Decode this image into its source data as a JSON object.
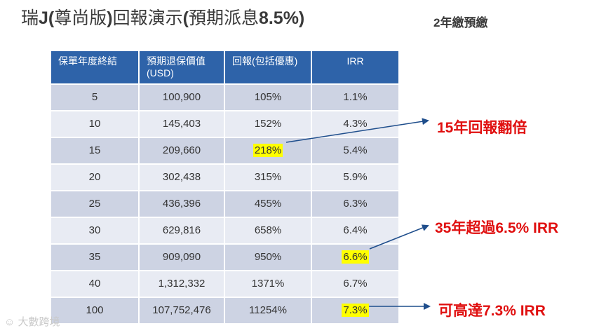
{
  "title": {
    "part1": "瑞",
    "part2": "J(",
    "part3": "尊尚版",
    "part4": ")",
    "part5": "回報演示",
    "part6": "(",
    "part7": "預期派息",
    "part8": "8.5%)"
  },
  "subtitle": "2年繳預繳",
  "table": {
    "headers": [
      "保單年度終結",
      "預期退保價值(USD)",
      "回報(包括優惠)",
      "IRR"
    ],
    "rows": [
      {
        "year": "5",
        "value": "100,900",
        "return": "105%",
        "irr": "1.1%"
      },
      {
        "year": "10",
        "value": "145,403",
        "return": "152%",
        "irr": "4.3%"
      },
      {
        "year": "15",
        "value": "209,660",
        "return": "218%",
        "irr": "5.4%"
      },
      {
        "year": "20",
        "value": "302,438",
        "return": "315%",
        "irr": "5.9%"
      },
      {
        "year": "25",
        "value": "436,396",
        "return": "455%",
        "irr": "6.3%"
      },
      {
        "year": "30",
        "value": "629,816",
        "return": "658%",
        "irr": "6.4%"
      },
      {
        "year": "35",
        "value": "909,090",
        "return": "950%",
        "irr": "6.6%"
      },
      {
        "year": "40",
        "value": "1,312,332",
        "return": "1371%",
        "irr": "6.7%"
      },
      {
        "year": "100",
        "value": "107,752,476",
        "return": "11254%",
        "irr": "7.3%"
      }
    ]
  },
  "notes": {
    "double": "15年回報翻倍",
    "over": "35年超過6.5% IRR",
    "reach": "可高達7.3% IRR"
  },
  "colors": {
    "header_bg": "#2e63a9",
    "row_dark": "#cdd3e3",
    "row_light": "#e8ebf3",
    "highlight": "#ffff00",
    "note_red": "#e01010",
    "arrow_blue": "#1f4e8c"
  },
  "watermark": "大數跨境"
}
